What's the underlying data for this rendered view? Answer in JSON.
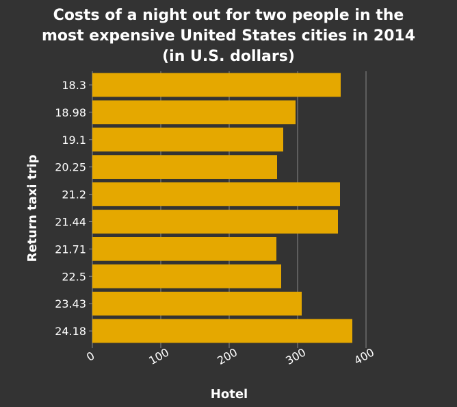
{
  "chart_data": {
    "type": "bar",
    "orientation": "horizontal",
    "title_lines": [
      "Costs of a night out for two people in the",
      "most expensive United States cities in 2014",
      "(in U.S. dollars)"
    ],
    "xlabel": "Hotel",
    "ylabel": "Return taxi trip",
    "categories": [
      "18.3",
      "18.98",
      "19.1",
      "20.25",
      "21.2",
      "21.44",
      "21.71",
      "22.5",
      "23.43",
      "24.18"
    ],
    "values": [
      363,
      297,
      279,
      270,
      362,
      359,
      269,
      276,
      306,
      380
    ],
    "xlim": [
      0,
      400
    ],
    "xticks": [
      "0",
      "100",
      "200",
      "300",
      "400"
    ],
    "grid": true,
    "colors": {
      "background": "#333333",
      "bar": "#e5a800",
      "grid": "#8a8a8a",
      "text": "#ffffff"
    }
  }
}
